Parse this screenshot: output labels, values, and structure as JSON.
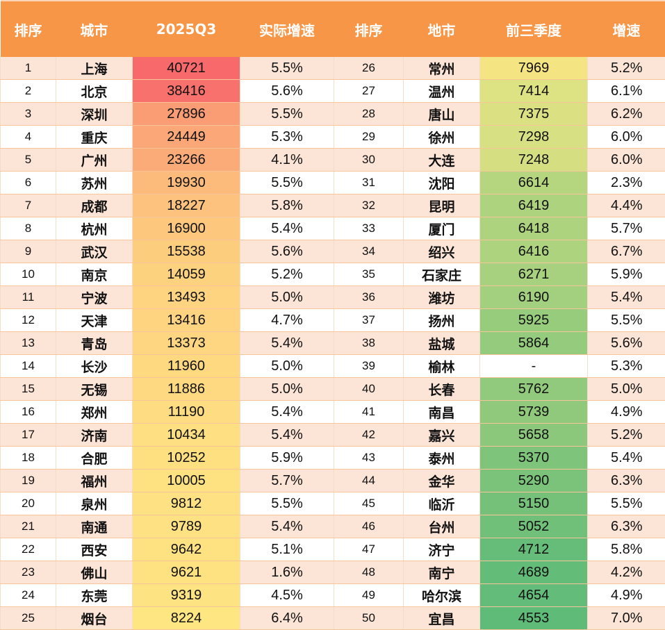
{
  "header": {
    "left": [
      "排序",
      "城市",
      "2025Q3",
      "实际增速"
    ],
    "right": [
      "排序",
      "地市",
      "前三季度",
      "增速"
    ]
  },
  "colors": {
    "header_bg": "#f79646",
    "row_odd": "#fce4d6",
    "row_even": "#ffffff"
  },
  "rows": [
    {
      "l": {
        "rank": "1",
        "city": "上海",
        "val": "40721",
        "gr": "5.5%",
        "bg": "#f8696b"
      },
      "r": {
        "rank": "26",
        "city": "常州",
        "val": "7969",
        "gr": "5.2%",
        "bg": "#f5e582"
      }
    },
    {
      "l": {
        "rank": "2",
        "city": "北京",
        "val": "38416",
        "gr": "5.6%",
        "bg": "#f8716c"
      },
      "r": {
        "rank": "27",
        "city": "温州",
        "val": "7414",
        "gr": "6.1%",
        "bg": "#dde283"
      }
    },
    {
      "l": {
        "rank": "3",
        "city": "深圳",
        "val": "27896",
        "gr": "5.5%",
        "bg": "#fa9d75"
      },
      "r": {
        "rank": "28",
        "city": "唐山",
        "val": "7375",
        "gr": "6.2%",
        "bg": "#dbe182"
      }
    },
    {
      "l": {
        "rank": "4",
        "city": "重庆",
        "val": "24449",
        "gr": "5.3%",
        "bg": "#fba777"
      },
      "r": {
        "rank": "29",
        "city": "徐州",
        "val": "7298",
        "gr": "6.0%",
        "bg": "#d7e082"
      }
    },
    {
      "l": {
        "rank": "5",
        "city": "广州",
        "val": "23266",
        "gr": "4.1%",
        "bg": "#fbab78"
      },
      "r": {
        "rank": "30",
        "city": "大连",
        "val": "7248",
        "gr": "6.0%",
        "bg": "#d5df82"
      }
    },
    {
      "l": {
        "rank": "6",
        "city": "苏州",
        "val": "19930",
        "gr": "5.5%",
        "bg": "#fcbb7b"
      },
      "r": {
        "rank": "31",
        "city": "沈阳",
        "val": "6614",
        "gr": "2.3%",
        "bg": "#b6d57f"
      }
    },
    {
      "l": {
        "rank": "7",
        "city": "成都",
        "val": "18227",
        "gr": "5.8%",
        "bg": "#fdc27d"
      },
      "r": {
        "rank": "32",
        "city": "昆明",
        "val": "6419",
        "gr": "4.4%",
        "bg": "#add37f"
      }
    },
    {
      "l": {
        "rank": "8",
        "city": "杭州",
        "val": "16900",
        "gr": "5.4%",
        "bg": "#fdc87e"
      },
      "r": {
        "rank": "33",
        "city": "厦门",
        "val": "6418",
        "gr": "5.7%",
        "bg": "#add37f"
      }
    },
    {
      "l": {
        "rank": "9",
        "city": "武汉",
        "val": "15538",
        "gr": "5.6%",
        "bg": "#fdcd7e"
      },
      "r": {
        "rank": "34",
        "city": "绍兴",
        "val": "6416",
        "gr": "6.7%",
        "bg": "#add37f"
      }
    },
    {
      "l": {
        "rank": "10",
        "city": "南京",
        "val": "14059",
        "gr": "5.2%",
        "bg": "#fdd27f"
      },
      "r": {
        "rank": "35",
        "city": "石家庄",
        "val": "6271",
        "gr": "5.9%",
        "bg": "#a7d17e"
      }
    },
    {
      "l": {
        "rank": "11",
        "city": "宁波",
        "val": "13493",
        "gr": "5.0%",
        "bg": "#fed480"
      },
      "r": {
        "rank": "36",
        "city": "潍坊",
        "val": "6190",
        "gr": "5.4%",
        "bg": "#a3d07e"
      }
    },
    {
      "l": {
        "rank": "12",
        "city": "天津",
        "val": "13416",
        "gr": "4.7%",
        "bg": "#fed480"
      },
      "r": {
        "rank": "37",
        "city": "扬州",
        "val": "5925",
        "gr": "5.5%",
        "bg": "#98cc7d"
      }
    },
    {
      "l": {
        "rank": "13",
        "city": "青岛",
        "val": "13373",
        "gr": "5.4%",
        "bg": "#fed580"
      },
      "r": {
        "rank": "38",
        "city": "盐城",
        "val": "5864",
        "gr": "5.6%",
        "bg": "#95cb7d"
      }
    },
    {
      "l": {
        "rank": "14",
        "city": "长沙",
        "val": "11960",
        "gr": "5.0%",
        "bg": "#fed980"
      },
      "r": {
        "rank": "39",
        "city": "榆林",
        "val": "-",
        "gr": "5.3%",
        "bg": "#ffffff"
      }
    },
    {
      "l": {
        "rank": "15",
        "city": "无锡",
        "val": "11886",
        "gr": "5.0%",
        "bg": "#fed981"
      },
      "r": {
        "rank": "40",
        "city": "长春",
        "val": "5762",
        "gr": "5.0%",
        "bg": "#91ca7c"
      }
    },
    {
      "l": {
        "rank": "16",
        "city": "郑州",
        "val": "11190",
        "gr": "5.4%",
        "bg": "#fedc81"
      },
      "r": {
        "rank": "41",
        "city": "南昌",
        "val": "5739",
        "gr": "4.9%",
        "bg": "#90c97c"
      }
    },
    {
      "l": {
        "rank": "17",
        "city": "济南",
        "val": "10434",
        "gr": "5.4%",
        "bg": "#fedf81"
      },
      "r": {
        "rank": "42",
        "city": "嘉兴",
        "val": "5658",
        "gr": "5.2%",
        "bg": "#8cc87c"
      }
    },
    {
      "l": {
        "rank": "18",
        "city": "合肥",
        "val": "10252",
        "gr": "5.9%",
        "bg": "#fee081"
      },
      "r": {
        "rank": "43",
        "city": "泰州",
        "val": "5370",
        "gr": "5.4%",
        "bg": "#7fc47b"
      }
    },
    {
      "l": {
        "rank": "19",
        "city": "福州",
        "val": "10005",
        "gr": "5.7%",
        "bg": "#fee181"
      },
      "r": {
        "rank": "44",
        "city": "金华",
        "val": "5290",
        "gr": "6.3%",
        "bg": "#7bc37b"
      }
    },
    {
      "l": {
        "rank": "20",
        "city": "泉州",
        "val": "9812",
        "gr": "5.5%",
        "bg": "#fee182"
      },
      "r": {
        "rank": "45",
        "city": "临沂",
        "val": "5150",
        "gr": "5.5%",
        "bg": "#75c17a"
      }
    },
    {
      "l": {
        "rank": "21",
        "city": "南通",
        "val": "9789",
        "gr": "5.4%",
        "bg": "#fee182"
      },
      "r": {
        "rank": "46",
        "city": "台州",
        "val": "5052",
        "gr": "6.3%",
        "bg": "#71c07a"
      }
    },
    {
      "l": {
        "rank": "22",
        "city": "西安",
        "val": "9642",
        "gr": "5.1%",
        "bg": "#fee282"
      },
      "r": {
        "rank": "47",
        "city": "济宁",
        "val": "4712",
        "gr": "5.8%",
        "bg": "#66bd79"
      }
    },
    {
      "l": {
        "rank": "23",
        "city": "佛山",
        "val": "9621",
        "gr": "1.6%",
        "bg": "#fee282"
      },
      "r": {
        "rank": "48",
        "city": "南宁",
        "val": "4689",
        "gr": "4.2%",
        "bg": "#64bc79"
      }
    },
    {
      "l": {
        "rank": "24",
        "city": "东莞",
        "val": "9319",
        "gr": "4.5%",
        "bg": "#fee382"
      },
      "r": {
        "rank": "49",
        "city": "哈尔滨",
        "val": "4654",
        "gr": "4.9%",
        "bg": "#63bc79"
      }
    },
    {
      "l": {
        "rank": "25",
        "city": "烟台",
        "val": "8224",
        "gr": "6.4%",
        "bg": "#fee782"
      },
      "r": {
        "rank": "50",
        "city": "宜昌",
        "val": "4553",
        "gr": "7.0%",
        "bg": "#5fbb78"
      }
    }
  ]
}
